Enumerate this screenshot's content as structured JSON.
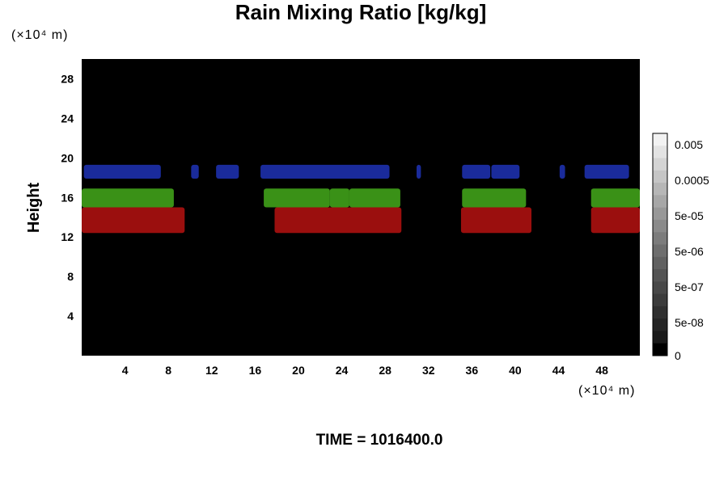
{
  "chart_data": {
    "type": "heatmap",
    "title": "Rain Mixing Ratio [kg/kg]",
    "xlabel": "",
    "ylabel": "Height",
    "x_unit": "(×10⁴ m)",
    "y_unit": "(×10⁴ m)",
    "xlim": [
      0,
      51.5
    ],
    "ylim": [
      0,
      30
    ],
    "x_ticks": [
      4,
      8,
      12,
      16,
      20,
      24,
      28,
      32,
      36,
      40,
      44,
      48
    ],
    "y_ticks": [
      4,
      8,
      12,
      16,
      20,
      24,
      28
    ],
    "colorbar": {
      "labels": [
        "0.005",
        "0.0005",
        "5e-05",
        "5e-06",
        "5e-07",
        "5e-08",
        "0"
      ],
      "label_frac": [
        0.05,
        0.21,
        0.37,
        0.53,
        0.69,
        0.85,
        1.0
      ],
      "colors": [
        "#f2f2f2",
        "#e3e3e3",
        "#d4d4d4",
        "#c5c5c5",
        "#b6b6b6",
        "#a7a7a7",
        "#989898",
        "#8a8a8a",
        "#7c7c7c",
        "#6e6e6e",
        "#616161",
        "#545454",
        "#484848",
        "#3c3c3c",
        "#303030",
        "#252525",
        "#1a1a1a",
        "#000000"
      ]
    },
    "background": "#000000",
    "layers": [
      {
        "color": "#1c2fa8",
        "y_range": [
          17.9,
          19.3
        ],
        "segments": [
          [
            0.2,
            7.3
          ],
          [
            10.1,
            10.8
          ],
          [
            12.4,
            14.5
          ],
          [
            16.5,
            28.4
          ],
          [
            30.9,
            31.3
          ],
          [
            35.1,
            37.7
          ],
          [
            37.8,
            40.4
          ],
          [
            44.1,
            44.6
          ],
          [
            46.4,
            50.5
          ]
        ]
      },
      {
        "color": "#3f9d19",
        "y_range": [
          15.0,
          16.9
        ],
        "segments": [
          [
            0.0,
            8.5
          ],
          [
            16.8,
            22.9
          ],
          [
            22.9,
            24.7
          ],
          [
            24.7,
            29.4
          ],
          [
            35.1,
            41.0
          ],
          [
            47.0,
            51.5
          ]
        ]
      },
      {
        "color": "#a8100f",
        "y_range": [
          12.4,
          15.0
        ],
        "segments": [
          [
            0.0,
            9.5
          ],
          [
            17.8,
            29.5
          ],
          [
            35.0,
            41.5
          ],
          [
            47.0,
            51.5
          ]
        ]
      }
    ]
  },
  "footer": {
    "time_label": "TIME = 1016400.0"
  }
}
